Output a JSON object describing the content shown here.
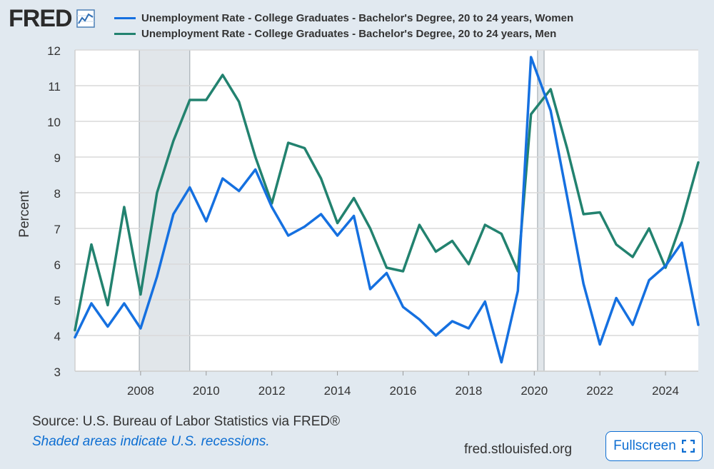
{
  "brand": {
    "logo_text": "FRED",
    "logo_icon": "line-chart-icon"
  },
  "footer": {
    "source": "Source: U.S. Bureau of Labor Statistics via FRED®",
    "recession_note": "Shaded areas indicate U.S. recessions.",
    "site": "fred.stlouisfed.org",
    "fullscreen_label": "Fullscreen",
    "fullscreen_icon": "expand-icon"
  },
  "colors": {
    "women": "#1570e0",
    "men": "#22826f",
    "recession": "#e1e6ea",
    "grid": "#d9d9d9"
  },
  "chart_data": {
    "type": "line",
    "title": "",
    "xlabel": "",
    "ylabel": "Percent",
    "ylim": [
      3,
      12
    ],
    "yticks": [
      3,
      4,
      5,
      6,
      7,
      8,
      9,
      10,
      11,
      12
    ],
    "xlim": [
      2006.0,
      2025.0
    ],
    "xticks": [
      2008,
      2010,
      2012,
      2014,
      2016,
      2018,
      2020,
      2022,
      2024
    ],
    "grid": true,
    "legend_position": "top",
    "recessions": [
      {
        "start": 2007.96,
        "end": 2009.5
      },
      {
        "start": 2020.1,
        "end": 2020.3
      }
    ],
    "series": [
      {
        "name": "Unemployment Rate - College Graduates - Bachelor's Degree, 20 to 24 years, Women",
        "color": "#1570e0",
        "points": [
          [
            2006.0,
            3.95
          ],
          [
            2006.5,
            4.9
          ],
          [
            2007.0,
            4.25
          ],
          [
            2007.5,
            4.9
          ],
          [
            2008.0,
            4.2
          ],
          [
            2008.5,
            5.65
          ],
          [
            2009.0,
            7.4
          ],
          [
            2009.5,
            8.15
          ],
          [
            2010.0,
            7.2
          ],
          [
            2010.5,
            8.4
          ],
          [
            2011.0,
            8.05
          ],
          [
            2011.5,
            8.65
          ],
          [
            2012.0,
            7.6
          ],
          [
            2012.5,
            6.8
          ],
          [
            2013.0,
            7.05
          ],
          [
            2013.5,
            7.4
          ],
          [
            2014.0,
            6.8
          ],
          [
            2014.5,
            7.35
          ],
          [
            2015.0,
            5.3
          ],
          [
            2015.5,
            5.75
          ],
          [
            2016.0,
            4.8
          ],
          [
            2016.5,
            4.45
          ],
          [
            2017.0,
            4.0
          ],
          [
            2017.5,
            4.4
          ],
          [
            2018.0,
            4.2
          ],
          [
            2018.5,
            4.95
          ],
          [
            2019.0,
            3.25
          ],
          [
            2019.5,
            5.25
          ],
          [
            2019.9,
            11.8
          ],
          [
            2020.5,
            10.3
          ],
          [
            2021.0,
            7.9
          ],
          [
            2021.5,
            5.45
          ],
          [
            2022.0,
            3.75
          ],
          [
            2022.5,
            5.05
          ],
          [
            2023.0,
            4.3
          ],
          [
            2023.5,
            5.55
          ],
          [
            2024.0,
            5.95
          ],
          [
            2024.5,
            6.6
          ],
          [
            2025.0,
            4.3
          ]
        ]
      },
      {
        "name": "Unemployment Rate - College Graduates - Bachelor's Degree, 20 to 24 years, Men",
        "color": "#22826f",
        "points": [
          [
            2006.0,
            4.15
          ],
          [
            2006.5,
            6.55
          ],
          [
            2007.0,
            4.85
          ],
          [
            2007.5,
            7.6
          ],
          [
            2008.0,
            5.15
          ],
          [
            2008.5,
            8.0
          ],
          [
            2009.0,
            9.45
          ],
          [
            2009.5,
            10.6
          ],
          [
            2010.0,
            10.6
          ],
          [
            2010.5,
            11.3
          ],
          [
            2011.0,
            10.55
          ],
          [
            2011.5,
            9.0
          ],
          [
            2012.0,
            7.7
          ],
          [
            2012.5,
            9.4
          ],
          [
            2013.0,
            9.25
          ],
          [
            2013.5,
            8.4
          ],
          [
            2014.0,
            7.15
          ],
          [
            2014.5,
            7.85
          ],
          [
            2015.0,
            7.0
          ],
          [
            2015.5,
            5.9
          ],
          [
            2016.0,
            5.8
          ],
          [
            2016.5,
            7.1
          ],
          [
            2017.0,
            6.35
          ],
          [
            2017.5,
            6.65
          ],
          [
            2018.0,
            6.0
          ],
          [
            2018.5,
            7.1
          ],
          [
            2019.0,
            6.85
          ],
          [
            2019.5,
            5.8
          ],
          [
            2019.9,
            10.2
          ],
          [
            2020.5,
            10.9
          ],
          [
            2021.0,
            9.25
          ],
          [
            2021.5,
            7.4
          ],
          [
            2022.0,
            7.45
          ],
          [
            2022.5,
            6.55
          ],
          [
            2023.0,
            6.2
          ],
          [
            2023.5,
            7.0
          ],
          [
            2024.0,
            5.9
          ],
          [
            2024.5,
            7.2
          ],
          [
            2025.0,
            8.85
          ]
        ]
      }
    ]
  }
}
